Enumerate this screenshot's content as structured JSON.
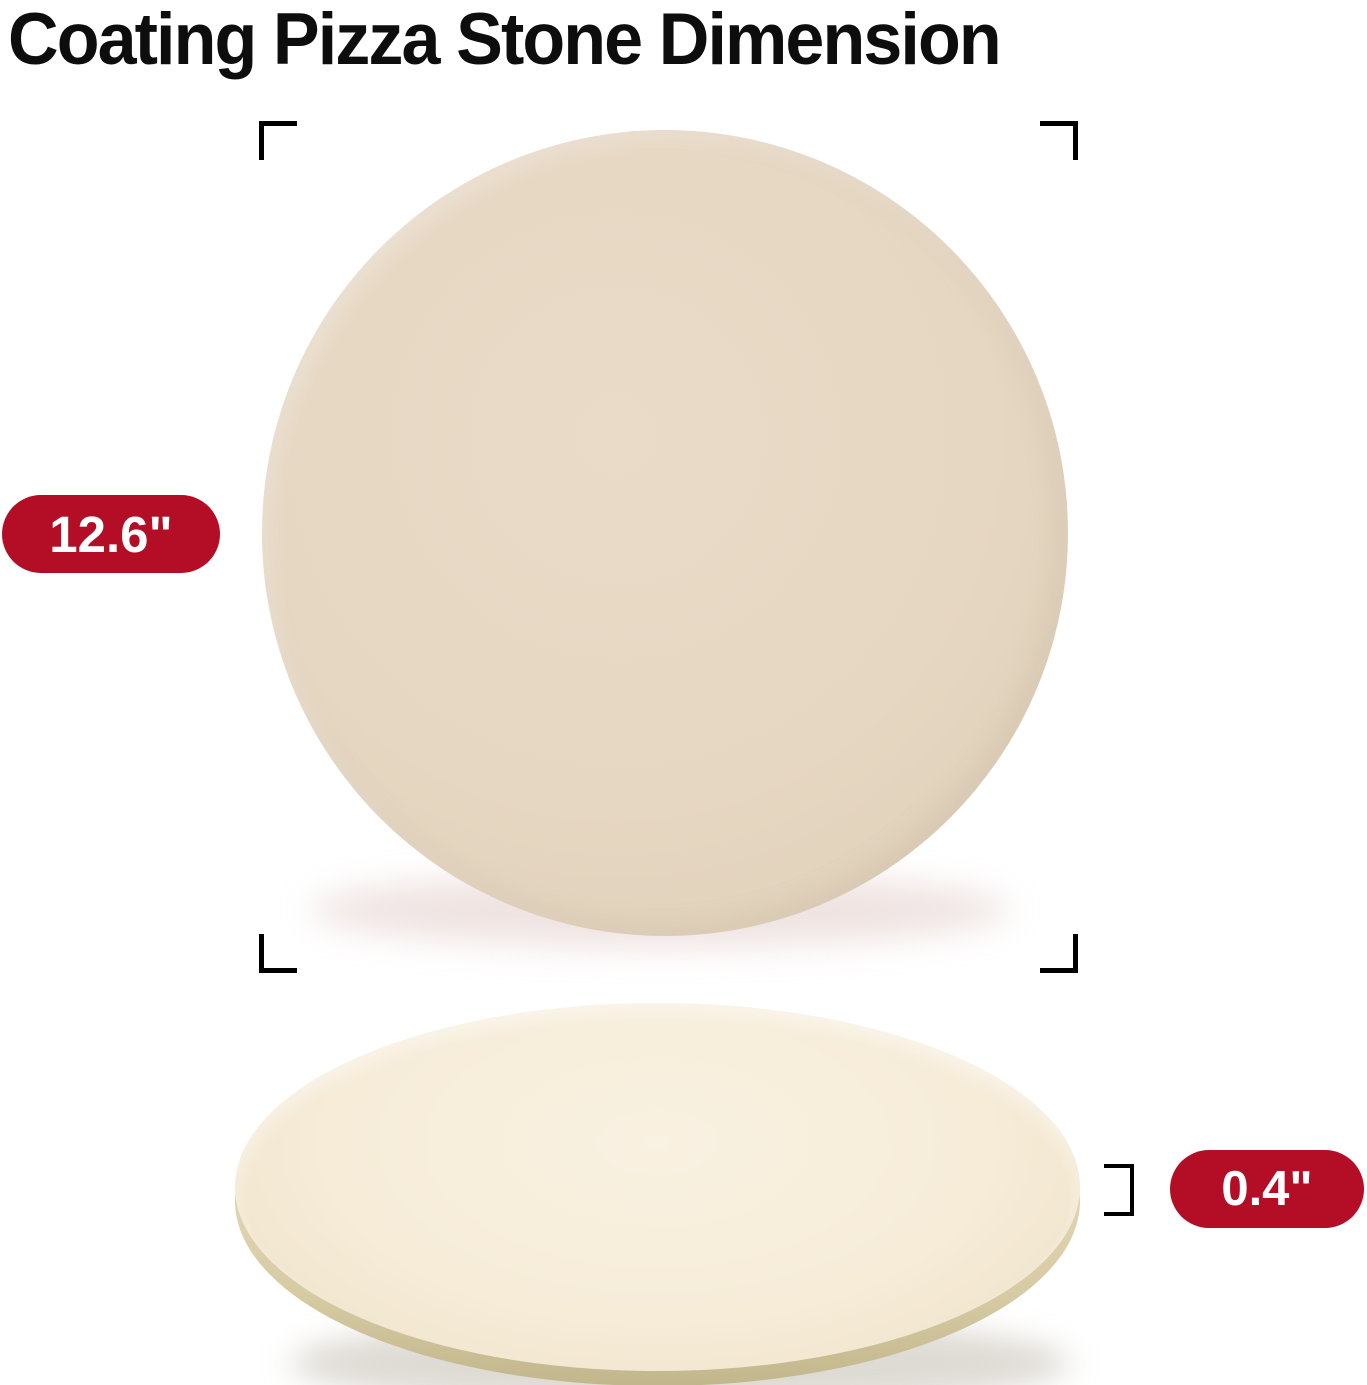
{
  "title": "Coating Pizza Stone Dimension",
  "annotations": {
    "diameter_label": "12.6\"",
    "thickness_label": "0.4\""
  },
  "objects": {
    "top_view": "Pizza stone top view",
    "side_view": "Pizza stone side view"
  },
  "colors": {
    "badge_red": "#b30e25",
    "badge_text": "#ffffff",
    "title_black": "#0d0d0d",
    "bracket_black": "#000000",
    "stone_cream_top_view": "#e6d7c2",
    "stone_cream_side_view": "#f5ebd7",
    "stone_rim_khaki": "#d6cba3"
  }
}
